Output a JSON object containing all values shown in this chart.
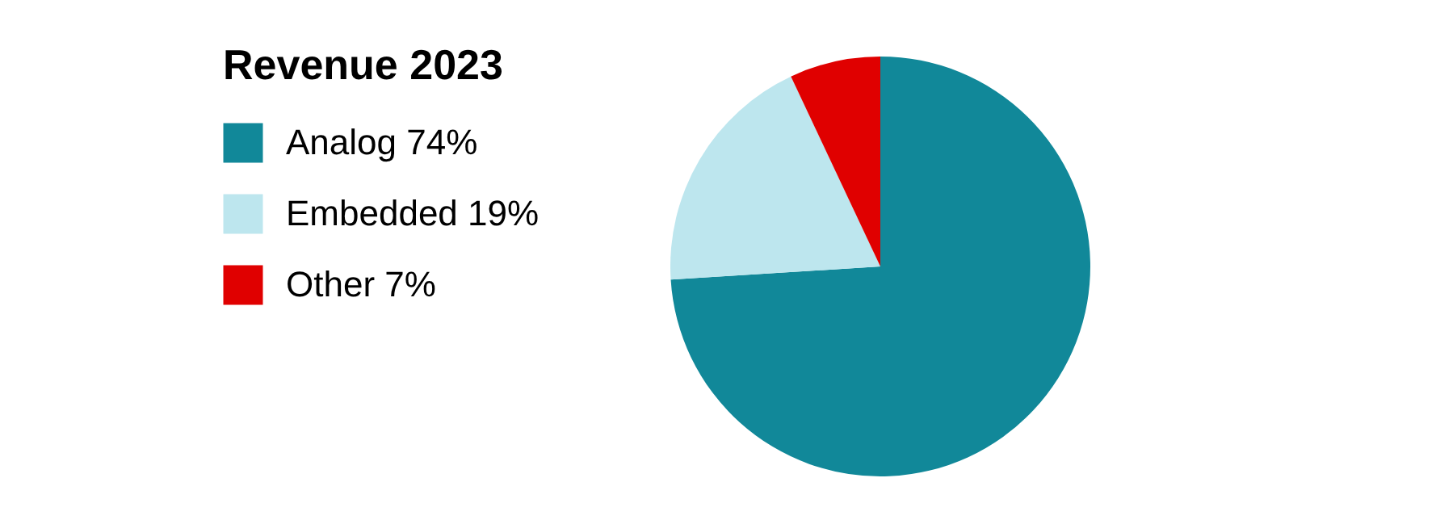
{
  "chart_data": {
    "type": "pie",
    "legend_title": "Revenue 2023",
    "categories": [
      "Analog 74%",
      "Embedded 19%",
      "Other 7%"
    ],
    "values": [
      74,
      19,
      7
    ],
    "colors": [
      "#118899",
      "#bde6ee",
      "#e00000"
    ],
    "legend": "left"
  }
}
